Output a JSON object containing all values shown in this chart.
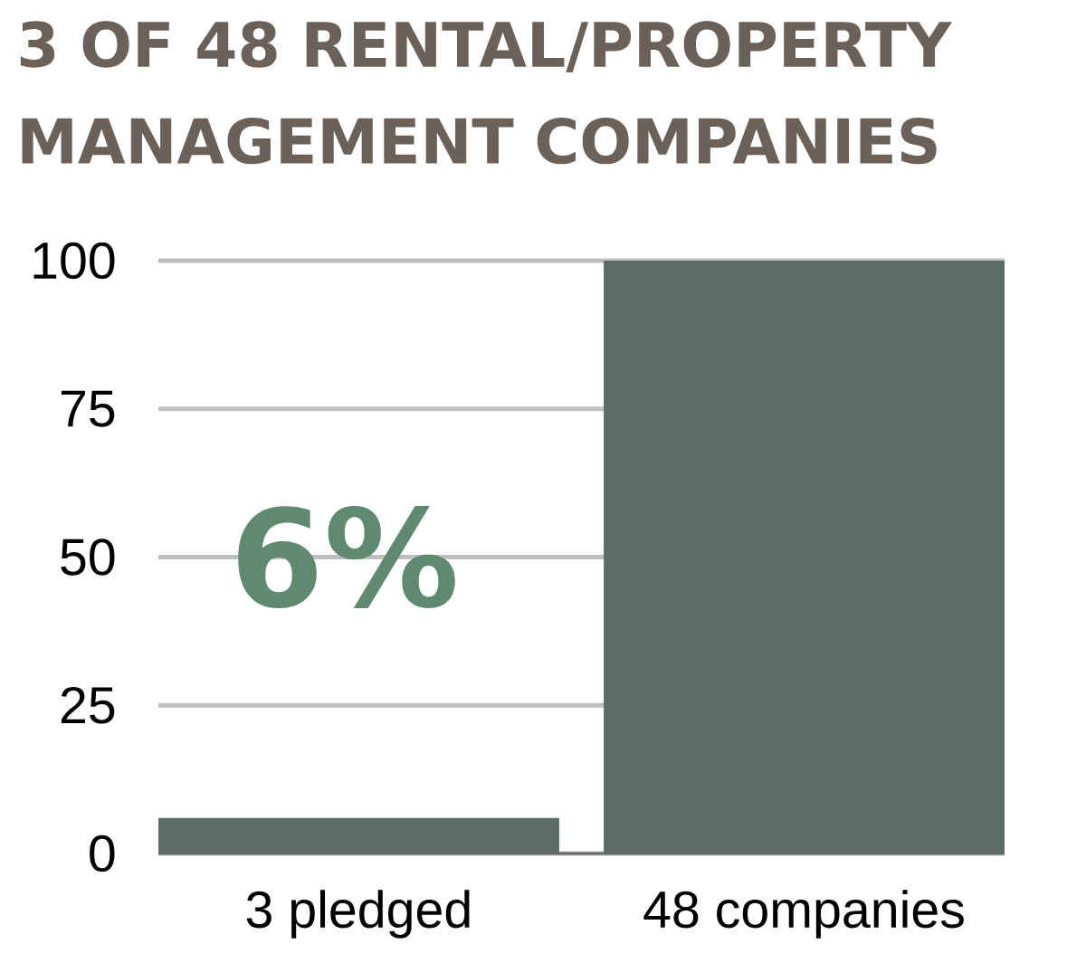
{
  "chart_data": {
    "type": "bar",
    "title": "3 OF 48 RENTAL/PROPERTY MANAGEMENT COMPANIES",
    "categories": [
      "3 pledged",
      "48 companies"
    ],
    "values": [
      6,
      100
    ],
    "color": "#5c6b65",
    "ylim": [
      0,
      100
    ],
    "yticks": [
      0,
      25,
      50,
      75,
      100
    ],
    "grid": "y",
    "annotations": [
      "6%"
    ]
  }
}
